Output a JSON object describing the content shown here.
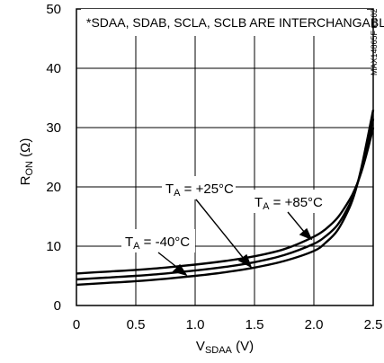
{
  "chart_data": {
    "type": "line",
    "title": "",
    "note": "*SDAA, SDAB, SCLA, SCLB ARE INTERCHANGABLE",
    "figure_code": "MAX14865F toc02",
    "xlabel": {
      "main": "V",
      "sub": "SDAA",
      "unit": " (V)"
    },
    "ylabel": {
      "main": "R",
      "sub": "ON",
      "unit": " (Ω)"
    },
    "xlim": [
      0,
      2.5
    ],
    "ylim": [
      0,
      50
    ],
    "xticks": [
      0,
      0.5,
      1.0,
      1.5,
      2.0,
      2.5
    ],
    "xtick_labels": [
      "0",
      "0.5",
      "1.0",
      "1.5",
      "2.0",
      "2.5"
    ],
    "yticks": [
      0,
      10,
      20,
      30,
      40,
      50
    ],
    "ytick_labels": [
      "0",
      "10",
      "20",
      "30",
      "40",
      "50"
    ],
    "grid": true,
    "series": [
      {
        "name": "T_A = +85°C",
        "label_main": "T",
        "label_sub": "A",
        "label_rest": " = +85°C",
        "x": [
          0,
          0.25,
          0.5,
          0.75,
          1.0,
          1.25,
          1.5,
          1.75,
          2.0,
          2.1,
          2.2,
          2.3,
          2.35,
          2.4,
          2.45,
          2.5
        ],
        "y": [
          5.4,
          5.7,
          6.0,
          6.4,
          6.9,
          7.5,
          8.3,
          9.5,
          11.6,
          12.9,
          14.8,
          17.8,
          19.8,
          22.5,
          26.0,
          30.0
        ]
      },
      {
        "name": "T_A = +25°C",
        "label_main": "T",
        "label_sub": "A",
        "label_rest": " = +25°C",
        "x": [
          0,
          0.25,
          0.5,
          0.75,
          1.0,
          1.25,
          1.5,
          1.75,
          2.0,
          2.1,
          2.2,
          2.3,
          2.35,
          2.4,
          2.45,
          2.5
        ],
        "y": [
          4.4,
          4.7,
          5.0,
          5.4,
          5.9,
          6.5,
          7.3,
          8.5,
          10.4,
          11.7,
          13.6,
          17.0,
          19.5,
          22.8,
          27.0,
          31.5
        ]
      },
      {
        "name": "T_A = -40°C",
        "label_main": "T",
        "label_sub": "A",
        "label_rest": " = -40°C",
        "x": [
          0,
          0.25,
          0.5,
          0.75,
          1.0,
          1.25,
          1.5,
          1.75,
          2.0,
          2.1,
          2.2,
          2.3,
          2.35,
          2.4,
          2.45,
          2.5
        ],
        "y": [
          3.5,
          3.8,
          4.1,
          4.5,
          5.0,
          5.6,
          6.4,
          7.5,
          9.2,
          10.6,
          12.7,
          16.5,
          19.3,
          23.2,
          28.0,
          33.0
        ]
      }
    ]
  }
}
